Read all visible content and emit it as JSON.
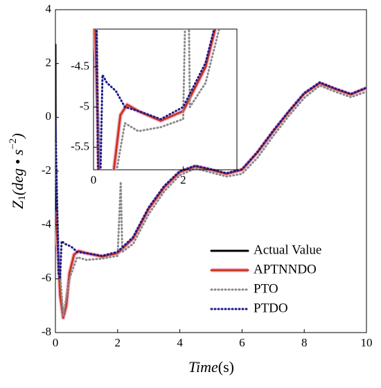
{
  "chart_data": {
    "type": "line",
    "xlabel": {
      "main": "Time",
      "unit": "(s)"
    },
    "ylabel": {
      "base": "Z",
      "sub": "1",
      "unit": "(deg • s",
      "sup": "−2",
      "close": ")"
    },
    "xlim": [
      0,
      10
    ],
    "xticks": [
      0,
      2,
      4,
      6,
      8,
      10
    ],
    "ylim": [
      -8,
      4
    ],
    "yticks": [
      -8,
      -6,
      -4,
      -2,
      0,
      2,
      4
    ],
    "legend": "lower right",
    "series": [
      {
        "name": "Actual Value",
        "color": "#000000",
        "style": "solid",
        "x": [
          0,
          0.01,
          0.05,
          0.1,
          0.15,
          0.25,
          0.35,
          0.45,
          0.6,
          0.75,
          1.0,
          1.5,
          2,
          2.5,
          3,
          3.5,
          4,
          4.5,
          5,
          5.5,
          6,
          6.5,
          7,
          7.5,
          8,
          8.5,
          9,
          9.5,
          10
        ],
        "values": [
          2.7,
          -3.5,
          -4.2,
          -5.2,
          -6.6,
          -7.45,
          -7.0,
          -5.8,
          -5.1,
          -4.97,
          -5.05,
          -5.17,
          -5.05,
          -4.5,
          -3.4,
          -2.6,
          -2.03,
          -1.82,
          -1.95,
          -2.1,
          -1.95,
          -1.3,
          -0.53,
          0.2,
          0.88,
          1.27,
          1.05,
          0.85,
          1.09
        ]
      },
      {
        "name": "APTNNDO",
        "color": "#c8361a",
        "style": "solid",
        "x": [
          0,
          0.05,
          0.1,
          0.15,
          0.25,
          0.35,
          0.45,
          0.6,
          0.75,
          1.0,
          1.5,
          2,
          2.5,
          3,
          3.5,
          4,
          4.5,
          5,
          5.5,
          6,
          6.5,
          7,
          7.5,
          8,
          8.5,
          9,
          9.5,
          10
        ],
        "values": [
          -3.5,
          -4.3,
          -5.3,
          -6.6,
          -7.45,
          -7.0,
          -5.8,
          -5.1,
          -4.97,
          -5.05,
          -5.17,
          -5.05,
          -4.5,
          -3.4,
          -2.6,
          -2.03,
          -1.82,
          -1.95,
          -2.1,
          -1.95,
          -1.3,
          -0.53,
          0.2,
          0.88,
          1.27,
          1.05,
          0.85,
          1.09
        ]
      },
      {
        "name": "PTO",
        "color": "#888888",
        "style": "dotted",
        "x": [
          0,
          0.1,
          0.25,
          0.45,
          0.7,
          1.0,
          1.5,
          2.0,
          2.1,
          2.15,
          2.5,
          3,
          3.5,
          4,
          4.5,
          5,
          5.5,
          6,
          6.5,
          7,
          7.5,
          8,
          8.5,
          9,
          9.5,
          10
        ],
        "values": [
          -1,
          -5,
          -7.4,
          -6,
          -5.2,
          -5.3,
          -5.25,
          -5.15,
          -2.4,
          -5.0,
          -4.7,
          -3.6,
          -2.75,
          -2.15,
          -1.9,
          -2.05,
          -2.2,
          -2.1,
          -1.5,
          -0.7,
          0.05,
          0.72,
          1.18,
          0.95,
          0.75,
          0.95
        ]
      },
      {
        "name": "PTDO",
        "color": "#1a1a8c",
        "style": "dotted",
        "x": [
          0,
          0.1,
          0.15,
          0.2,
          0.3,
          0.5,
          0.7,
          1.0,
          1.5,
          2,
          2.5,
          3,
          3.5,
          4,
          4.5,
          5,
          5.5,
          6,
          6.5,
          7,
          7.5,
          8,
          8.5,
          9,
          9.5,
          10
        ],
        "values": [
          0,
          -5.8,
          -6.0,
          -4.6,
          -4.7,
          -4.8,
          -5.0,
          -5.05,
          -5.15,
          -5.0,
          -4.45,
          -3.35,
          -2.55,
          -2.0,
          -1.8,
          -1.93,
          -2.08,
          -1.93,
          -1.28,
          -0.5,
          0.22,
          0.9,
          1.3,
          1.07,
          0.87,
          1.1
        ]
      }
    ],
    "inset": {
      "xlim": [
        0,
        3.2
      ],
      "xticks": [
        0,
        2
      ],
      "ylim": [
        -5.78,
        -4.03
      ],
      "yticks": [
        -4.5,
        -5,
        -5.5
      ]
    }
  }
}
